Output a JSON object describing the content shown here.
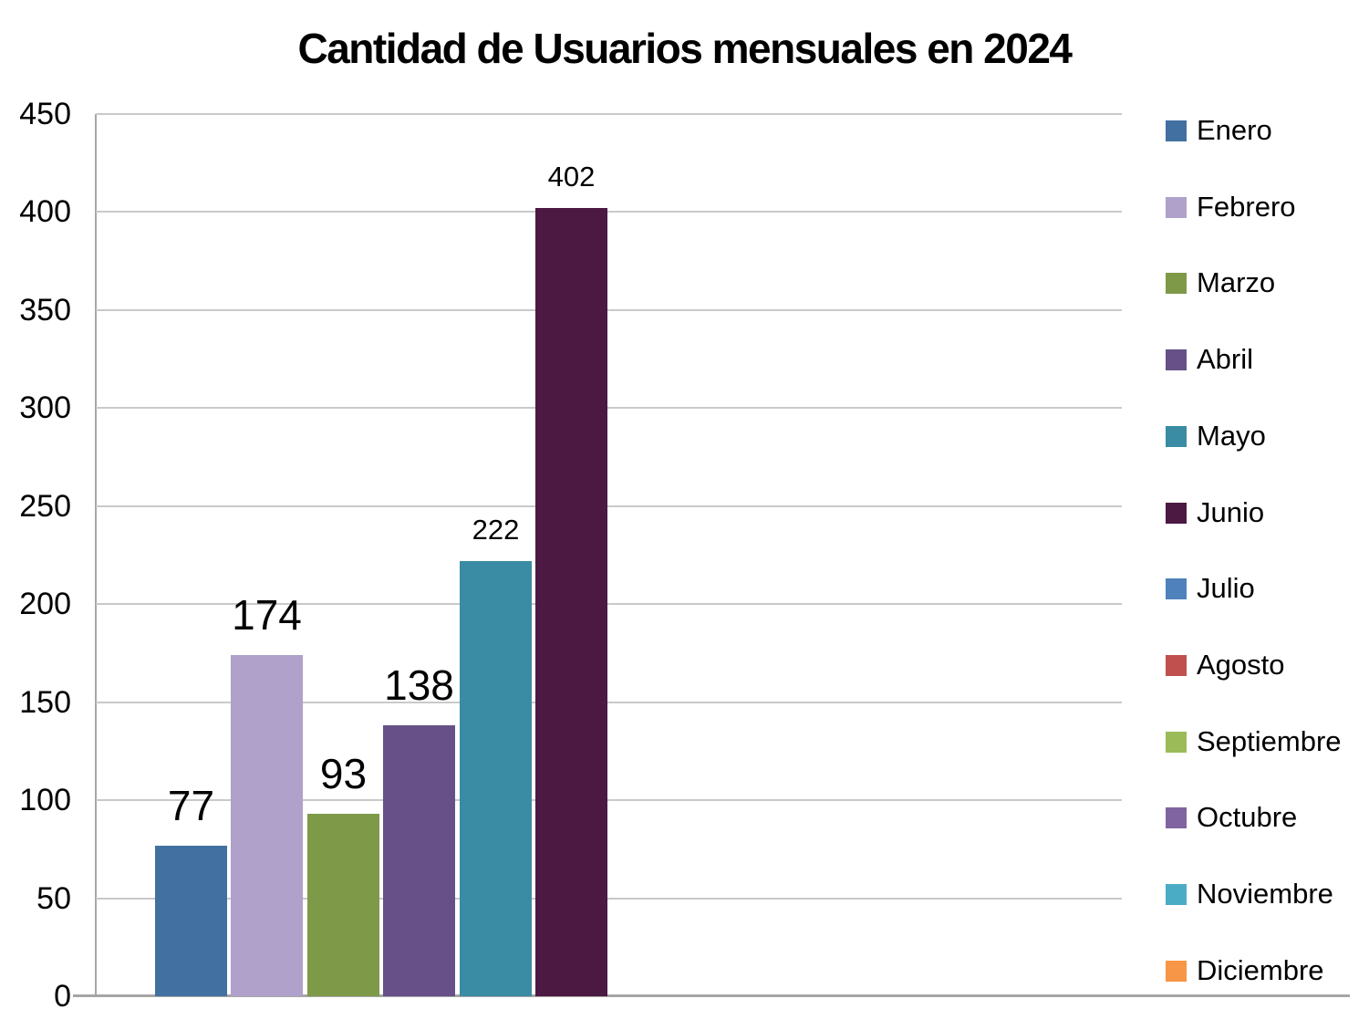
{
  "chart_data": {
    "type": "bar",
    "title": "Cantidad de Usuarios mensuales en 2024",
    "xlabel": "",
    "ylabel": "",
    "ylim": [
      0,
      450
    ],
    "ytick_step": 50,
    "yticks": [
      0,
      50,
      100,
      150,
      200,
      250,
      300,
      350,
      400,
      450
    ],
    "grid": true,
    "legend_position": "right",
    "categories": [
      "Enero",
      "Febrero",
      "Marzo",
      "Abril",
      "Mayo",
      "Junio",
      "Julio",
      "Agosto",
      "Septiembre",
      "Octubre",
      "Noviembre",
      "Diciembre"
    ],
    "series": [
      {
        "name": "Enero",
        "value": 77,
        "value_label": "77",
        "color": "#4270A0",
        "label_large": true
      },
      {
        "name": "Febrero",
        "value": 174,
        "value_label": "174",
        "color": "#AFA1C9",
        "label_large": true
      },
      {
        "name": "Marzo",
        "value": 93,
        "value_label": "93",
        "color": "#7E9A49",
        "label_large": true
      },
      {
        "name": "Abril",
        "value": 138,
        "value_label": "138",
        "color": "#675087",
        "label_large": true
      },
      {
        "name": "Mayo",
        "value": 222,
        "value_label": "222",
        "color": "#3A8CA4",
        "label_large": false
      },
      {
        "name": "Junio",
        "value": 402,
        "value_label": "402",
        "color": "#4B1942",
        "label_large": false
      },
      {
        "name": "Julio",
        "value": null,
        "color": "#4F81BD"
      },
      {
        "name": "Agosto",
        "value": null,
        "color": "#C0504D"
      },
      {
        "name": "Septiembre",
        "value": null,
        "color": "#9BBB59"
      },
      {
        "name": "Octubre",
        "value": null,
        "color": "#8064A2"
      },
      {
        "name": "Noviembre",
        "value": null,
        "color": "#4BACC6"
      },
      {
        "name": "Diciembre",
        "value": null,
        "color": "#F79646"
      }
    ],
    "colors": {
      "gridline": "#C9C9C9",
      "axis_line": "#A6A6A6",
      "text": "#000000",
      "background": "#FFFFFF"
    }
  }
}
